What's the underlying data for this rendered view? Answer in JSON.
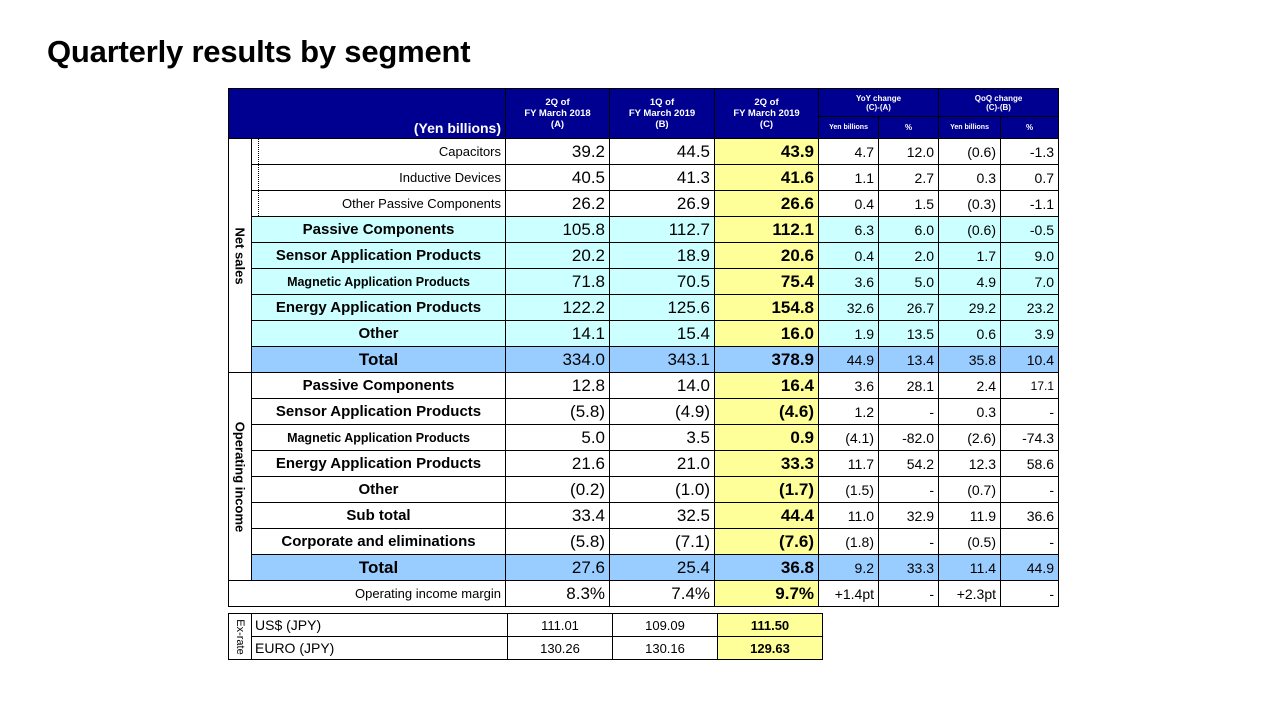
{
  "title": "Quarterly results by segment",
  "header": {
    "unit": "(Yen billions)",
    "col_a": "2Q of FY March 2018 (A)",
    "col_b": "1Q of FY March 2019 (B)",
    "col_c": "2Q of FY March 2019 (C)",
    "yoy_title": "YoY change",
    "yoy_formula": "(C)-(A)",
    "qoq_title": "QoQ change",
    "qoq_formula": "(C)-(B)",
    "sub_yen": "Yen billions",
    "sub_pct": "%"
  },
  "sections": {
    "net_sales": "Net sales",
    "operating_income": "Operating income",
    "ex_rate": "Ex-rate"
  },
  "net_sales": [
    {
      "label": "Capacitors",
      "a": "39.2",
      "b": "44.5",
      "c": "43.9",
      "yoy": "4.7",
      "yoy_pct": "12.0",
      "qoq": "(0.6)",
      "qoq_pct": "-1.3"
    },
    {
      "label": "Inductive Devices",
      "a": "40.5",
      "b": "41.3",
      "c": "41.6",
      "yoy": "1.1",
      "yoy_pct": "2.7",
      "qoq": "0.3",
      "qoq_pct": "0.7"
    },
    {
      "label": "Other Passive Components",
      "a": "26.2",
      "b": "26.9",
      "c": "26.6",
      "yoy": "0.4",
      "yoy_pct": "1.5",
      "qoq": "(0.3)",
      "qoq_pct": "-1.1"
    },
    {
      "label": "Passive Components",
      "a": "105.8",
      "b": "112.7",
      "c": "112.1",
      "yoy": "6.3",
      "yoy_pct": "6.0",
      "qoq": "(0.6)",
      "qoq_pct": "-0.5"
    },
    {
      "label": "Sensor Application Products",
      "a": "20.2",
      "b": "18.9",
      "c": "20.6",
      "yoy": "0.4",
      "yoy_pct": "2.0",
      "qoq": "1.7",
      "qoq_pct": "9.0"
    },
    {
      "label": "Magnetic Application Products",
      "a": "71.8",
      "b": "70.5",
      "c": "75.4",
      "yoy": "3.6",
      "yoy_pct": "5.0",
      "qoq": "4.9",
      "qoq_pct": "7.0"
    },
    {
      "label": "Energy Application Products",
      "a": "122.2",
      "b": "125.6",
      "c": "154.8",
      "yoy": "32.6",
      "yoy_pct": "26.7",
      "qoq": "29.2",
      "qoq_pct": "23.2"
    },
    {
      "label": "Other",
      "a": "14.1",
      "b": "15.4",
      "c": "16.0",
      "yoy": "1.9",
      "yoy_pct": "13.5",
      "qoq": "0.6",
      "qoq_pct": "3.9"
    },
    {
      "label": "Total",
      "a": "334.0",
      "b": "343.1",
      "c": "378.9",
      "yoy": "44.9",
      "yoy_pct": "13.4",
      "qoq": "35.8",
      "qoq_pct": "10.4"
    }
  ],
  "operating_income": [
    {
      "label": "Passive Components",
      "a": "12.8",
      "b": "14.0",
      "c": "16.4",
      "yoy": "3.6",
      "yoy_pct": "28.1",
      "qoq": "2.4",
      "qoq_pct": "17.1"
    },
    {
      "label": "Sensor Application Products",
      "a": "(5.8)",
      "b": "(4.9)",
      "c": "(4.6)",
      "yoy": "1.2",
      "yoy_pct": "-",
      "qoq": "0.3",
      "qoq_pct": "-"
    },
    {
      "label": "Magnetic Application Products",
      "a": "5.0",
      "b": "3.5",
      "c": "0.9",
      "yoy": "(4.1)",
      "yoy_pct": "-82.0",
      "qoq": "(2.6)",
      "qoq_pct": "-74.3"
    },
    {
      "label": "Energy Application Products",
      "a": "21.6",
      "b": "21.0",
      "c": "33.3",
      "yoy": "11.7",
      "yoy_pct": "54.2",
      "qoq": "12.3",
      "qoq_pct": "58.6"
    },
    {
      "label": "Other",
      "a": "(0.2)",
      "b": "(1.0)",
      "c": "(1.7)",
      "yoy": "(1.5)",
      "yoy_pct": "-",
      "qoq": "(0.7)",
      "qoq_pct": "-"
    },
    {
      "label": "Sub total",
      "a": "33.4",
      "b": "32.5",
      "c": "44.4",
      "yoy": "11.0",
      "yoy_pct": "32.9",
      "qoq": "11.9",
      "qoq_pct": "36.6"
    },
    {
      "label": "Corporate and eliminations",
      "a": "(5.8)",
      "b": "(7.1)",
      "c": "(7.6)",
      "yoy": "(1.8)",
      "yoy_pct": "-",
      "qoq": "(0.5)",
      "qoq_pct": "-"
    },
    {
      "label": "Total",
      "a": "27.6",
      "b": "25.4",
      "c": "36.8",
      "yoy": "9.2",
      "yoy_pct": "33.3",
      "qoq": "11.4",
      "qoq_pct": "44.9"
    }
  ],
  "margin": {
    "label": "Operating income margin",
    "a": "8.3%",
    "b": "7.4%",
    "c": "9.7%",
    "yoy": "+1.4pt",
    "yoy_pct": "-",
    "qoq": "+2.3pt",
    "qoq_pct": "-"
  },
  "rates": [
    {
      "label": "US$ (JPY)",
      "a": "111.01",
      "b": "109.09",
      "c": "111.50"
    },
    {
      "label": "EURO (JPY)",
      "a": "130.26",
      "b": "130.16",
      "c": "129.63"
    }
  ],
  "colors": {
    "header": "#000090",
    "segment_row": "#ccffff",
    "total_row": "#99ccff",
    "highlight": "#ffff99"
  }
}
